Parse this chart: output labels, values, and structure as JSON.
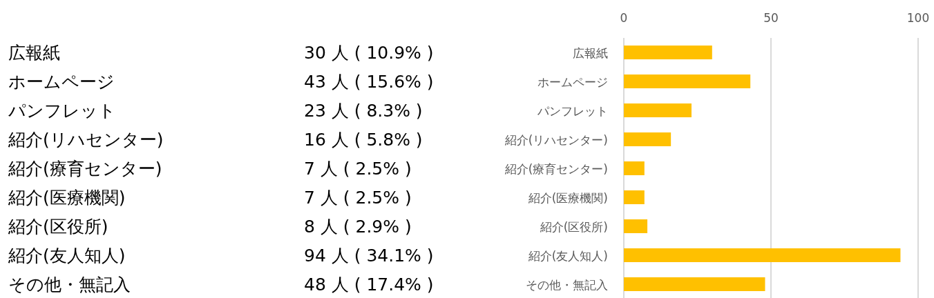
{
  "chart_data": [
    {
      "type": "other",
      "annotations": [
        "広報紙",
        "30 人 ( 10.9% )",
        "ホームページ",
        "43 人 ( 15.6% )",
        "パンフレット",
        "23 人 ( 8.3% )",
        "紹介(リハセンター)",
        "16 人 ( 5.8% )",
        "紹介(療育センター)",
        "7 人 ( 2.5% )",
        "紹介(医療機関)",
        "7 人 ( 2.5% )",
        "紹介(区役所)",
        "8 人 ( 2.9% )",
        "紹介(友人知人)",
        "94 人 ( 34.1% )",
        "その他・無記入",
        "48 人 ( 17.4% )"
      ]
    },
    {
      "type": "bar",
      "orientation": "horizontal",
      "categories": [
        "広報紙",
        "ホームページ",
        "パンフレット",
        "紹介(リハセンター)",
        "紹介(療育センター)",
        "紹介(医療機関)",
        "紹介(区役所)",
        "紹介(友人知人)",
        "その他・無記入"
      ],
      "values": [
        30,
        43,
        23,
        16,
        7,
        7,
        8,
        94,
        48
      ],
      "color": "#ffc000",
      "xlim": [
        0,
        100
      ],
      "xticks": [
        0,
        50,
        100
      ],
      "grid": "x"
    }
  ]
}
